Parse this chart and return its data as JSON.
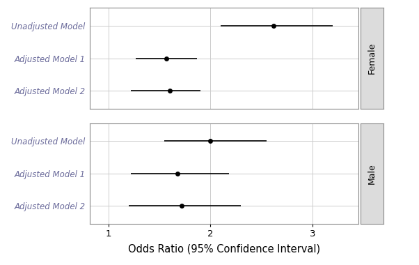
{
  "panels": [
    {
      "label": "Female",
      "models": [
        "Unadjusted Model",
        "Adjusted Model 1",
        "Adjusted Model 2"
      ],
      "estimates": [
        2.62,
        1.57,
        1.6
      ],
      "ci_low": [
        2.1,
        1.27,
        1.22
      ],
      "ci_high": [
        3.2,
        1.87,
        1.9
      ]
    },
    {
      "label": "Male",
      "models": [
        "Unadjusted Model",
        "Adjusted Model 1",
        "Adjusted Model 2"
      ],
      "estimates": [
        2.0,
        1.68,
        1.72
      ],
      "ci_low": [
        1.55,
        1.22,
        1.2
      ],
      "ci_high": [
        2.55,
        2.18,
        2.3
      ]
    }
  ],
  "xlabel": "Odds Ratio (95% Confidence Interval)",
  "xlim": [
    0.82,
    3.45
  ],
  "xticks": [
    1,
    2,
    3
  ],
  "point_color": "#000000",
  "line_color": "#000000",
  "label_color": "#6B6B9B",
  "panel_bg": "#FFFFFF",
  "strip_bg": "#DCDCDC",
  "grid_color": "#CCCCCC",
  "point_size": 5,
  "line_width": 1.2,
  "label_fontsize": 8.5,
  "xlabel_fontsize": 10.5,
  "strip_fontsize": 9,
  "tick_fontsize": 9.5
}
